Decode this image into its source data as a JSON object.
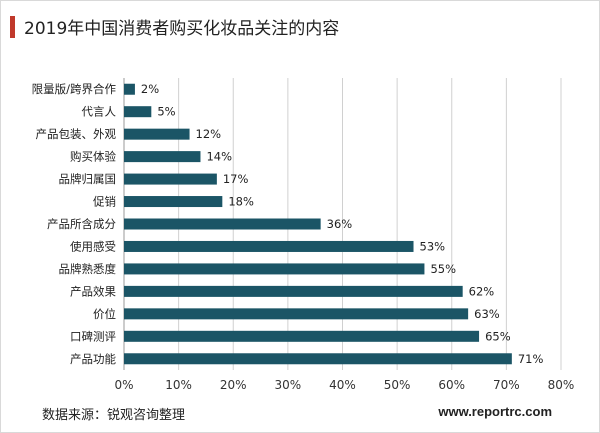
{
  "title": "2019年中国消费者购买化妆品关注的内容",
  "source": "数据来源：锐观咨询整理",
  "website": "www.reportrc.com",
  "colors": {
    "bar": "#1b5566",
    "grid": "#d0d0d0",
    "accent": "#c0392b"
  },
  "chart_data": {
    "type": "bar",
    "orientation": "horizontal",
    "categories": [
      "限量版/跨界合作",
      "代言人",
      "产品包装、外观",
      "购买体验",
      "品牌归属国",
      "促销",
      "产品所含成分",
      "使用感受",
      "品牌熟悉度",
      "产品效果",
      "价位",
      "口碑测评",
      "产品功能"
    ],
    "values": [
      2,
      5,
      12,
      14,
      17,
      18,
      36,
      53,
      55,
      62,
      63,
      65,
      71
    ],
    "data_labels": [
      "2%",
      "5%",
      "12%",
      "14%",
      "17%",
      "18%",
      "36%",
      "53%",
      "55%",
      "62%",
      "63%",
      "65%",
      "71%"
    ],
    "xlim": [
      0,
      80
    ],
    "x_ticks": [
      "0%",
      "10%",
      "20%",
      "30%",
      "40%",
      "50%",
      "60%",
      "70%",
      "80%"
    ],
    "grid": true,
    "legend": "none"
  }
}
